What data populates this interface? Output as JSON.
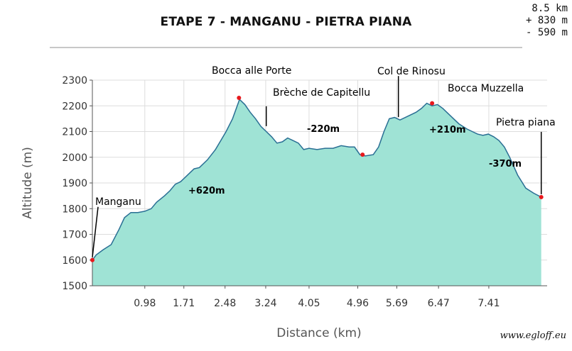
{
  "header": {
    "title": "ETAPE 7 - MANGANU - PIETRA PIANA",
    "stats": [
      "8.5 km",
      "+ 830 m",
      "- 590 m"
    ]
  },
  "credit": "www.egloff.eu",
  "colors": {
    "fill": "#9fe3d5",
    "line": "#2a6f94",
    "marker": "#e8181c",
    "grid": "#dddddd"
  },
  "chart_data": {
    "type": "area",
    "title": "ETAPE 7 - MANGANU - PIETRA PIANA",
    "xlabel": "Distance (km)",
    "ylabel": "Altitude (m)",
    "xlim": [
      0,
      8.5
    ],
    "ylim": [
      1500,
      2300
    ],
    "grid": true,
    "x_ticks": [
      0.98,
      1.71,
      2.48,
      3.24,
      4.05,
      4.96,
      5.69,
      6.47,
      7.41
    ],
    "x_tick_labels": [
      "0.98",
      "1.71",
      "2.48",
      "3.24",
      "4.05",
      "4.96",
      "5.69",
      "6.47",
      "7.41"
    ],
    "y_ticks": [
      1500,
      1600,
      1700,
      1800,
      1900,
      2000,
      2100,
      2200,
      2300
    ],
    "series": [
      {
        "x": [
          0.0,
          0.07,
          0.2,
          0.35,
          0.5,
          0.6,
          0.72,
          0.85,
          0.98,
          1.1,
          1.2,
          1.35,
          1.45,
          1.55,
          1.65,
          1.75,
          1.9,
          2.0,
          2.15,
          2.3,
          2.4,
          2.5,
          2.62,
          2.75,
          2.85,
          2.95,
          3.05,
          3.15,
          3.25,
          3.35,
          3.45,
          3.55,
          3.65,
          3.75,
          3.85,
          3.95,
          4.05,
          4.2,
          4.35,
          4.5,
          4.65,
          4.8,
          4.9,
          5.0,
          5.1,
          5.25,
          5.35,
          5.45,
          5.55,
          5.65,
          5.75,
          5.85,
          5.95,
          6.05,
          6.15,
          6.25,
          6.35,
          6.45,
          6.55,
          6.7,
          6.85,
          7.0,
          7.1,
          7.2,
          7.3,
          7.4,
          7.5,
          7.6,
          7.7,
          7.8,
          7.95,
          8.1,
          8.25,
          8.39
        ],
        "y": [
          1600,
          1620,
          1640,
          1660,
          1720,
          1765,
          1785,
          1785,
          1790,
          1800,
          1825,
          1850,
          1870,
          1895,
          1905,
          1925,
          1955,
          1960,
          1990,
          2030,
          2065,
          2100,
          2150,
          2225,
          2205,
          2175,
          2150,
          2120,
          2100,
          2080,
          2055,
          2060,
          2075,
          2065,
          2055,
          2030,
          2035,
          2030,
          2035,
          2035,
          2045,
          2040,
          2040,
          2010,
          2005,
          2010,
          2040,
          2100,
          2150,
          2155,
          2145,
          2155,
          2165,
          2175,
          2190,
          2210,
          2200,
          2205,
          2190,
          2160,
          2130,
          2110,
          2100,
          2090,
          2085,
          2090,
          2080,
          2065,
          2040,
          2000,
          1930,
          1880,
          1860,
          1845
        ]
      }
    ],
    "points": [
      {
        "name": "Manganu",
        "x": 0.0,
        "y": 1600,
        "delta": "+620m"
      },
      {
        "name": "Bocca alle Porte",
        "x": 2.74,
        "y": 2231,
        "delta": "-220m"
      },
      {
        "name": "Brèche de Capitellu",
        "x": 3.25,
        "y": 2110
      },
      {
        "name": "",
        "x": 5.05,
        "y": 2010,
        "delta": "+210m"
      },
      {
        "name": "Col de Rinosu",
        "x": 5.72,
        "y": 2145
      },
      {
        "name": "Bocca Muzzella",
        "x": 6.35,
        "y": 2210,
        "delta": "-370m"
      },
      {
        "name": "Pietra piana",
        "x": 8.39,
        "y": 1845
      }
    ],
    "labels": {
      "manganu": "Manganu",
      "bocca_alle_porte": "Bocca alle Porte",
      "breche": "Brèche de Capitellu",
      "col_de_rinosu": "Col de Rinosu",
      "bocca_muzzella": "Bocca Muzzella",
      "pietra_piana": "Pietra piana",
      "delta_1": "+620m",
      "delta_2": "-220m",
      "delta_3": "+210m",
      "delta_4": "-370m"
    }
  }
}
